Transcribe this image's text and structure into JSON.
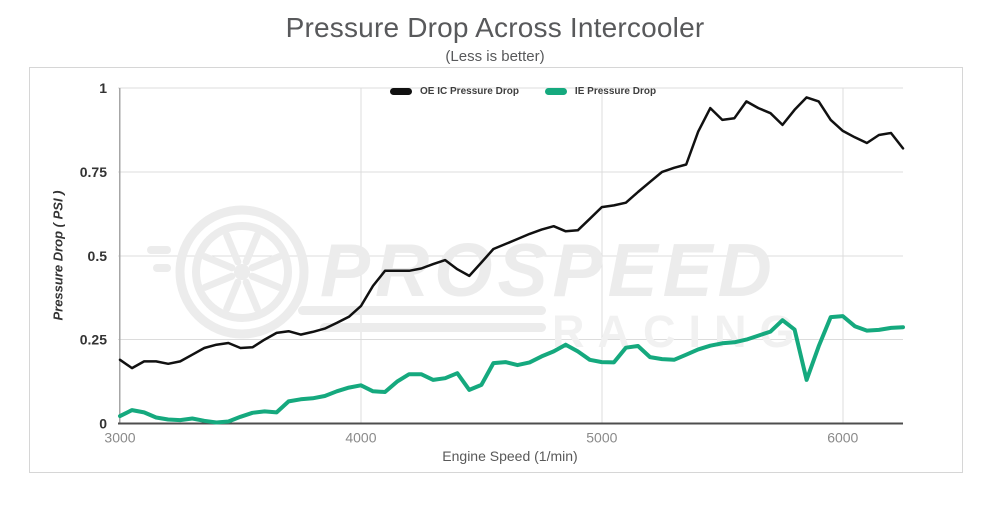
{
  "chart_data": {
    "type": "line",
    "title": "Pressure Drop Across Intercooler",
    "subtitle": "(Less is better)",
    "xlabel": "Engine Speed (1/min)",
    "ylabel": "Pressure Drop ( PSI )",
    "xlim": [
      3000,
      6250
    ],
    "ylim": [
      0,
      1
    ],
    "x_ticks": [
      3000,
      4000,
      5000,
      6000
    ],
    "y_ticks": [
      0,
      0.25,
      0.5,
      0.75,
      1
    ],
    "grid": true,
    "legend_position": "top-center",
    "x": [
      3000,
      3050,
      3100,
      3150,
      3200,
      3250,
      3300,
      3350,
      3400,
      3450,
      3500,
      3550,
      3600,
      3650,
      3700,
      3750,
      3800,
      3850,
      3900,
      3950,
      4000,
      4050,
      4100,
      4150,
      4200,
      4250,
      4300,
      4350,
      4400,
      4450,
      4500,
      4550,
      4600,
      4650,
      4700,
      4750,
      4800,
      4850,
      4900,
      4950,
      5000,
      5050,
      5100,
      5150,
      5200,
      5250,
      5300,
      5350,
      5400,
      5450,
      5500,
      5550,
      5600,
      5650,
      5700,
      5750,
      5800,
      5850,
      5900,
      5950,
      6000,
      6050,
      6100,
      6150,
      6200,
      6250
    ],
    "series": [
      {
        "name": "OE IC Pressure Drop",
        "color": "#111111",
        "line_width": 2.5,
        "values": [
          0.19,
          0.165,
          0.185,
          0.185,
          0.178,
          0.185,
          0.205,
          0.225,
          0.235,
          0.24,
          0.225,
          0.227,
          0.25,
          0.27,
          0.275,
          0.265,
          0.273,
          0.283,
          0.3,
          0.318,
          0.35,
          0.41,
          0.455,
          0.455,
          0.455,
          0.462,
          0.475,
          0.487,
          0.46,
          0.44,
          0.48,
          0.52,
          0.535,
          0.55,
          0.565,
          0.578,
          0.588,
          0.573,
          0.576,
          0.61,
          0.645,
          0.65,
          0.658,
          0.69,
          0.72,
          0.75,
          0.762,
          0.772,
          0.87,
          0.94,
          0.905,
          0.91,
          0.96,
          0.94,
          0.925,
          0.89,
          0.935,
          0.972,
          0.96,
          0.905,
          0.872,
          0.853,
          0.836,
          0.86,
          0.866,
          0.82
        ]
      },
      {
        "name": "IE Pressure Drop",
        "color": "#15a97e",
        "line_width": 4,
        "values": [
          0.022,
          0.04,
          0.033,
          0.018,
          0.012,
          0.01,
          0.015,
          0.008,
          0.003,
          0.006,
          0.02,
          0.032,
          0.036,
          0.033,
          0.066,
          0.072,
          0.075,
          0.082,
          0.096,
          0.107,
          0.114,
          0.096,
          0.094,
          0.125,
          0.147,
          0.147,
          0.13,
          0.135,
          0.15,
          0.1,
          0.115,
          0.18,
          0.183,
          0.174,
          0.182,
          0.2,
          0.215,
          0.235,
          0.215,
          0.19,
          0.183,
          0.182,
          0.226,
          0.231,
          0.198,
          0.192,
          0.19,
          0.205,
          0.221,
          0.232,
          0.239,
          0.242,
          0.25,
          0.262,
          0.274,
          0.308,
          0.28,
          0.13,
          0.23,
          0.317,
          0.32,
          0.29,
          0.277,
          0.279,
          0.285,
          0.287
        ]
      }
    ]
  },
  "watermark": {
    "brand": "PROSPEED",
    "sub": "RACING",
    "color": "#ececec"
  },
  "style": {
    "grid_color": "#dcdcdc",
    "x_axis_color": "#4d4d4d",
    "y_axis_color": "#a6a6a6",
    "y_tick_color": "#333333",
    "x_tick_color": "#8a8a8a",
    "border_color": "#d6d6d6"
  }
}
